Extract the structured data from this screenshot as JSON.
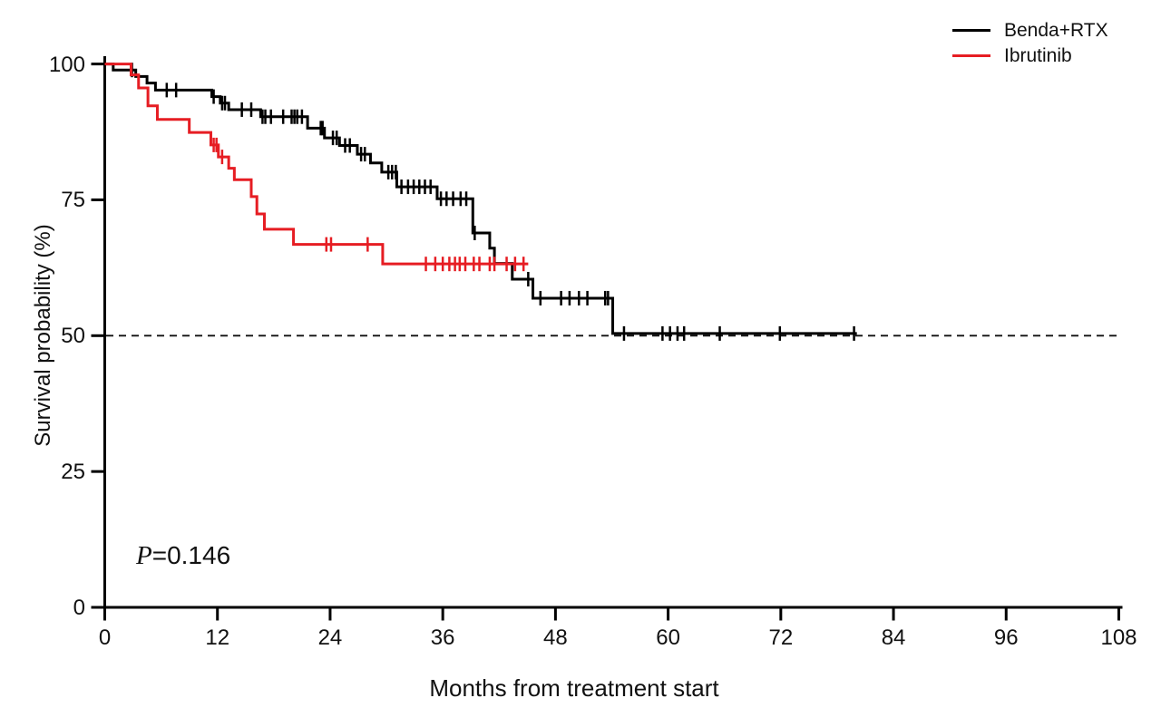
{
  "figure": {
    "background": "#ffffff"
  },
  "chart_data": {
    "type": "line",
    "subtype": "kaplan-meier-step-curves",
    "title": "",
    "xlabel": "Months from treatment start",
    "ylabel": "Survival probability (%)",
    "xlim": [
      0,
      108
    ],
    "ylim": [
      0,
      100
    ],
    "xticks": [
      0,
      12,
      24,
      36,
      48,
      60,
      72,
      84,
      96,
      108
    ],
    "yticks": [
      0,
      25,
      50,
      75,
      100
    ],
    "grid": false,
    "legend_position": "top-right",
    "axis_color": "#000000",
    "reference_line": {
      "y": 50,
      "style": "dashed",
      "color": "#111111"
    },
    "annotation": {
      "p_label": "P",
      "p_value": "=0.146"
    },
    "series": [
      {
        "name": "Benda+RTX",
        "slug": "benda-rtx",
        "color": "#000000",
        "steps": [
          [
            0,
            100
          ],
          [
            0.9,
            98.9
          ],
          [
            3.3,
            97.7
          ],
          [
            4.5,
            96.5
          ],
          [
            5.4,
            95.2
          ],
          [
            11.4,
            94.0
          ],
          [
            12.3,
            92.8
          ],
          [
            13.2,
            91.6
          ],
          [
            16.6,
            90.3
          ],
          [
            21.6,
            88.2
          ],
          [
            23.4,
            86.4
          ],
          [
            25.0,
            85.0
          ],
          [
            26.9,
            83.4
          ],
          [
            28.3,
            81.8
          ],
          [
            29.5,
            80.1
          ],
          [
            31.1,
            77.4
          ],
          [
            35.4,
            75.2
          ],
          [
            39.2,
            68.9
          ],
          [
            41.0,
            66.1
          ],
          [
            41.5,
            63.3
          ],
          [
            43.4,
            60.4
          ],
          [
            45.6,
            56.9
          ],
          [
            54.1,
            50.4
          ]
        ],
        "end_month": 80.1,
        "censors": [
          [
            2.9,
            98.9
          ],
          [
            6.6,
            95.2
          ],
          [
            7.6,
            95.2
          ],
          [
            11.6,
            94.0
          ],
          [
            12.5,
            92.8
          ],
          [
            12.8,
            92.8
          ],
          [
            14.6,
            91.6
          ],
          [
            15.6,
            91.6
          ],
          [
            16.8,
            90.3
          ],
          [
            17.1,
            90.3
          ],
          [
            17.7,
            90.3
          ],
          [
            19.0,
            90.3
          ],
          [
            19.9,
            90.3
          ],
          [
            20.2,
            90.3
          ],
          [
            20.5,
            90.3
          ],
          [
            21.0,
            90.3
          ],
          [
            23.0,
            88.2
          ],
          [
            23.2,
            88.2
          ],
          [
            24.3,
            86.4
          ],
          [
            24.7,
            86.4
          ],
          [
            25.6,
            85.0
          ],
          [
            26.1,
            85.0
          ],
          [
            27.3,
            83.4
          ],
          [
            27.7,
            83.4
          ],
          [
            30.2,
            80.1
          ],
          [
            30.6,
            80.1
          ],
          [
            31.0,
            80.1
          ],
          [
            31.6,
            77.4
          ],
          [
            32.3,
            77.4
          ],
          [
            32.9,
            77.4
          ],
          [
            33.5,
            77.4
          ],
          [
            34.1,
            77.4
          ],
          [
            34.7,
            77.4
          ],
          [
            35.8,
            75.2
          ],
          [
            36.4,
            75.2
          ],
          [
            37.1,
            75.2
          ],
          [
            37.9,
            75.2
          ],
          [
            38.5,
            75.2
          ],
          [
            39.4,
            68.9
          ],
          [
            45.1,
            60.4
          ],
          [
            46.4,
            56.9
          ],
          [
            48.6,
            56.9
          ],
          [
            49.5,
            56.9
          ],
          [
            50.5,
            56.9
          ],
          [
            51.4,
            56.9
          ],
          [
            53.3,
            56.9
          ],
          [
            53.6,
            56.9
          ],
          [
            55.3,
            50.4
          ],
          [
            59.4,
            50.4
          ],
          [
            60.2,
            50.4
          ],
          [
            61.0,
            50.4
          ],
          [
            61.7,
            50.4
          ],
          [
            65.5,
            50.4
          ],
          [
            71.9,
            50.4
          ],
          [
            79.8,
            50.4
          ]
        ]
      },
      {
        "name": "Ibrutinib",
        "slug": "ibrutinib",
        "color": "#e61d23",
        "steps": [
          [
            0,
            100
          ],
          [
            2.8,
            98.0
          ],
          [
            3.6,
            95.6
          ],
          [
            4.6,
            92.3
          ],
          [
            5.6,
            89.8
          ],
          [
            9.0,
            87.4
          ],
          [
            11.3,
            85.1
          ],
          [
            12.1,
            82.9
          ],
          [
            13.2,
            80.8
          ],
          [
            13.8,
            78.7
          ],
          [
            15.6,
            75.6
          ],
          [
            16.2,
            72.4
          ],
          [
            17.0,
            69.6
          ],
          [
            20.1,
            66.8
          ],
          [
            29.6,
            63.2
          ]
        ],
        "end_month": 45.1,
        "censors": [
          [
            11.6,
            85.1
          ],
          [
            11.9,
            85.1
          ],
          [
            12.5,
            82.9
          ],
          [
            23.6,
            66.8
          ],
          [
            24.1,
            66.8
          ],
          [
            28.0,
            66.8
          ],
          [
            34.2,
            63.2
          ],
          [
            35.2,
            63.2
          ],
          [
            36.0,
            63.2
          ],
          [
            36.7,
            63.2
          ],
          [
            37.3,
            63.2
          ],
          [
            37.8,
            63.2
          ],
          [
            38.4,
            63.2
          ],
          [
            39.3,
            63.2
          ],
          [
            39.9,
            63.2
          ],
          [
            41.0,
            63.2
          ],
          [
            41.5,
            63.2
          ],
          [
            42.8,
            63.2
          ],
          [
            43.7,
            63.2
          ],
          [
            44.6,
            63.2
          ]
        ]
      }
    ]
  }
}
